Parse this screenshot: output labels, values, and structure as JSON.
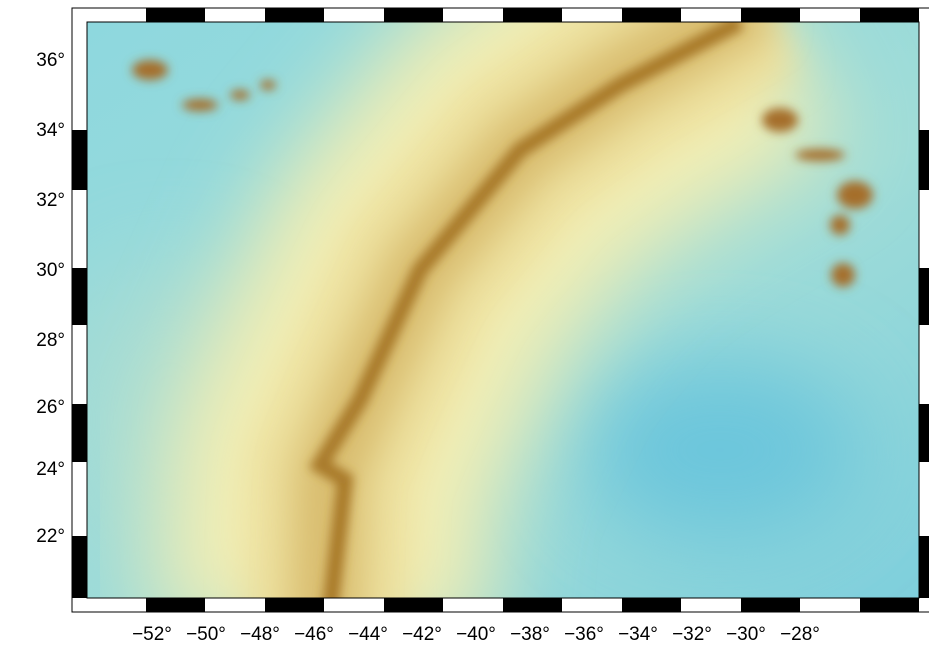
{
  "map": {
    "longitude_labels": [
      "−52°",
      "−50°",
      "−48°",
      "−46°",
      "−44°",
      "−42°",
      "−40°",
      "−38°",
      "−36°",
      "−34°",
      "−32°",
      "−30°",
      "−28°"
    ],
    "latitude_labels": [
      "36°",
      "34°",
      "32°",
      "30°",
      "28°",
      "26°",
      "24°",
      "22°"
    ]
  }
}
